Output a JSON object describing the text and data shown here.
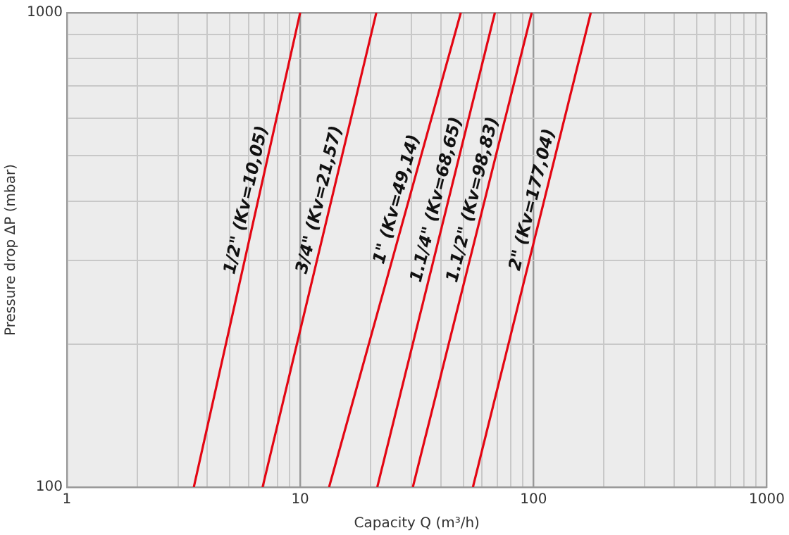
{
  "chart_data": {
    "type": "line",
    "xlabel": "Capacity Q (m³/h)",
    "ylabel": "Pressure drop ΔP (mbar)",
    "log": "xy",
    "grid": true,
    "legend": false,
    "marker": "none",
    "line_style": "solid",
    "xlim": [
      1,
      1000
    ],
    "xticks": [
      1,
      {
        "value": 2,
        "label": null
      },
      {
        "value": 3,
        "label": null
      },
      {
        "value": 4,
        "label": null
      },
      {
        "value": 5,
        "label": null
      },
      {
        "value": 6,
        "label": null
      },
      {
        "value": 7,
        "label": null
      },
      {
        "value": 8,
        "label": null
      },
      {
        "value": 9,
        "label": null
      },
      10,
      {
        "value": 20,
        "label": null
      },
      {
        "value": 30,
        "label": null
      },
      {
        "value": 40,
        "label": null
      },
      {
        "value": 50,
        "label": null
      },
      {
        "value": 60,
        "label": null
      },
      {
        "value": 70,
        "label": null
      },
      {
        "value": 80,
        "label": null
      },
      {
        "value": 90,
        "label": null
      },
      100,
      {
        "value": 200,
        "label": null
      },
      {
        "value": 300,
        "label": null
      },
      {
        "value": 400,
        "label": null
      },
      {
        "value": 500,
        "label": null
      },
      {
        "value": 600,
        "label": null
      },
      {
        "value": 700,
        "label": null
      },
      {
        "value": 800,
        "label": null
      },
      {
        "value": 900,
        "label": null
      },
      1000
    ],
    "ylim": [
      100,
      1000
    ],
    "yticks": [
      100,
      {
        "value": 200,
        "label": null
      },
      {
        "value": 300,
        "label": null
      },
      {
        "value": 400,
        "label": null
      },
      {
        "value": 500,
        "label": null
      },
      {
        "value": 600,
        "label": null
      },
      {
        "value": 700,
        "label": null
      },
      {
        "value": 800,
        "label": null
      },
      {
        "value": 900,
        "label": null
      },
      1000
    ],
    "series": [
      {
        "name": "1/2\" (Kv=10,05)",
        "color": "#e30613",
        "x": [
          3.5,
          10
        ],
        "values": [
          100,
          1000
        ]
      },
      {
        "name": "3/4\" (Kv=21,57)",
        "color": "#e30613",
        "x": [
          6.9,
          21.2
        ],
        "values": [
          100,
          1000
        ]
      },
      {
        "name": "1\" (Kv=49,14)",
        "color": "#e30613",
        "x": [
          13.3,
          48.8
        ],
        "values": [
          100,
          1000
        ]
      },
      {
        "name": "1.1/4\" (Kv=68,65)",
        "color": "#e30613",
        "x": [
          21.4,
          68.3
        ],
        "values": [
          100,
          1000
        ]
      },
      {
        "name": "1.1/2\" (Kv=98,83)",
        "color": "#e30613",
        "x": [
          30.4,
          98.2
        ],
        "values": [
          100,
          1000
        ]
      },
      {
        "name": "2\" (Kv=177,04)",
        "color": "#e30613",
        "x": [
          55,
          176
        ],
        "values": [
          100,
          1000
        ]
      }
    ]
  }
}
